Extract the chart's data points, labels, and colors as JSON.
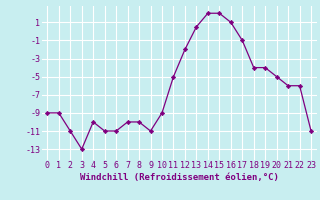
{
  "x": [
    0,
    1,
    2,
    3,
    4,
    5,
    6,
    7,
    8,
    9,
    10,
    11,
    12,
    13,
    14,
    15,
    16,
    17,
    18,
    19,
    20,
    21,
    22,
    23
  ],
  "y": [
    -9,
    -9,
    -11,
    -13,
    -10,
    -11,
    -11,
    -10,
    -10,
    -11,
    -9,
    -5,
    -2,
    0.5,
    2,
    2,
    1,
    -1,
    -4,
    -4,
    -5,
    -6,
    -6,
    -11
  ],
  "line_color": "#800080",
  "marker": "D",
  "marker_size": 2.2,
  "bg_color": "#c8eef0",
  "grid_color": "#ffffff",
  "xlabel": "Windchill (Refroidissement éolien,°C)",
  "xlabel_fontsize": 6.5,
  "yticks": [
    1,
    -1,
    -3,
    -5,
    -7,
    -9,
    -11,
    -13
  ],
  "xtick_labels": [
    "0",
    "1",
    "2",
    "3",
    "4",
    "5",
    "6",
    "7",
    "8",
    "9",
    "10",
    "11",
    "12",
    "13",
    "14",
    "15",
    "16",
    "17",
    "18",
    "19",
    "20",
    "21",
    "22",
    "23"
  ],
  "ylim": [
    -14.2,
    2.8
  ],
  "xlim": [
    -0.5,
    23.5
  ],
  "tick_fontsize": 6.0,
  "label_color": "#800080"
}
